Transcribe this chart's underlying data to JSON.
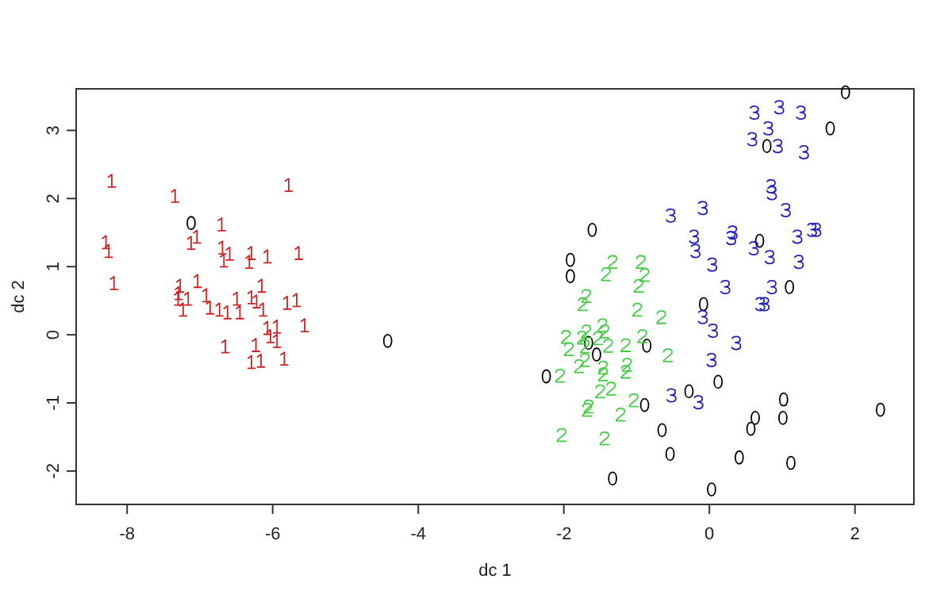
{
  "chart_data": {
    "type": "scatter",
    "xlabel": "dc 1",
    "ylabel": "dc 2",
    "xlim": [
      -8.7,
      2.81
    ],
    "ylim": [
      -2.49,
      3.61
    ],
    "xticks": [
      -8,
      -6,
      -4,
      -2,
      0,
      2
    ],
    "yticks": [
      -2,
      -1,
      0,
      1,
      2,
      3
    ],
    "grid": false,
    "legend": false,
    "series": [
      {
        "name": "1",
        "color": "#cc2222",
        "x": [
          -8.21,
          -7.34,
          -5.78,
          -6.7,
          -8.29,
          -8.25,
          -7.12,
          -7.04,
          -6.69,
          -6.59,
          -6.67,
          -6.29,
          -6.32,
          -6.07,
          -5.64,
          -8.18,
          -7.27,
          -7.29,
          -7.3,
          -7.16,
          -7.23,
          -7.03,
          -6.91,
          -6.86,
          -6.73,
          -6.62,
          -6.49,
          -6.45,
          -6.29,
          -6.22,
          -6.15,
          -6.13,
          -5.8,
          -5.67,
          -5.56,
          -6.07,
          -5.94,
          -6.03,
          -5.94,
          -6.65,
          -6.23,
          -6.29,
          -6.16,
          -5.84
        ],
        "values": [
          2.26,
          2.04,
          2.2,
          1.62,
          1.36,
          1.23,
          1.35,
          1.44,
          1.28,
          1.19,
          1.09,
          1.2,
          1.07,
          1.15,
          1.2,
          0.76,
          0.72,
          0.61,
          0.53,
          0.53,
          0.37,
          0.79,
          0.58,
          0.4,
          0.37,
          0.33,
          0.53,
          0.33,
          0.55,
          0.49,
          0.72,
          0.37,
          0.47,
          0.51,
          0.14,
          0.1,
          0.12,
          -0.02,
          -0.09,
          -0.17,
          -0.15,
          -0.4,
          -0.38,
          -0.35
        ]
      },
      {
        "name": "0",
        "color": "#000000",
        "x": [
          -7.12,
          -4.42,
          -1.61,
          -1.91,
          -1.91,
          -1.66,
          -1.55,
          -0.86,
          -2.24,
          -0.08,
          0.12,
          -0.28,
          -0.89,
          1.02,
          0.63,
          0.57,
          1.01,
          -0.65,
          -0.54,
          0.41,
          1.12,
          -1.33,
          0.03,
          2.35,
          1.87,
          1.66,
          0.79,
          0.69,
          1.1
        ],
        "values": [
          1.64,
          -0.09,
          1.54,
          1.1,
          0.86,
          -0.12,
          -0.29,
          -0.16,
          -0.61,
          0.45,
          -0.69,
          -0.83,
          -1.03,
          -0.95,
          -1.22,
          -1.38,
          -1.22,
          -1.4,
          -1.75,
          -1.8,
          -1.88,
          -2.11,
          -2.27,
          -1.1,
          3.56,
          3.03,
          2.77,
          1.38,
          0.7
        ]
      },
      {
        "name": "2",
        "color": "#44cc44",
        "x": [
          -1.33,
          -1.42,
          -0.94,
          -0.89,
          -0.97,
          -1.69,
          -1.74,
          -0.99,
          -0.66,
          -1.69,
          -1.47,
          -1.44,
          -1.97,
          -1.75,
          -1.53,
          -1.93,
          -1.71,
          -1.39,
          -1.15,
          -0.92,
          -0.57,
          -1.71,
          -1.79,
          -1.46,
          -1.46,
          -1.13,
          -1.15,
          -2.05,
          -1.35,
          -1.5,
          -1.66,
          -1.68,
          -1.04,
          -1.22,
          -2.03,
          -1.44
        ],
        "values": [
          1.07,
          0.89,
          1.07,
          0.88,
          0.72,
          0.57,
          0.45,
          0.37,
          0.26,
          0.05,
          0.14,
          0.05,
          -0.03,
          -0.04,
          -0.05,
          -0.21,
          -0.17,
          -0.16,
          -0.15,
          -0.02,
          -0.3,
          -0.37,
          -0.46,
          -0.48,
          -0.58,
          -0.44,
          -0.54,
          -0.6,
          -0.79,
          -0.83,
          -1.05,
          -1.1,
          -0.96,
          -1.17,
          -1.47,
          -1.52
        ]
      },
      {
        "name": "3",
        "color": "#2222bb",
        "x": [
          0.62,
          0.96,
          1.26,
          0.81,
          0.59,
          0.94,
          1.3,
          0.85,
          0.86,
          1.05,
          -0.09,
          -0.53,
          -0.21,
          -0.19,
          0.32,
          0.3,
          0.61,
          1.21,
          1.41,
          1.47,
          0.83,
          1.23,
          0.04,
          0.22,
          0.86,
          0.7,
          0.76,
          -0.09,
          0.05,
          0.37,
          0.03,
          -0.52,
          -0.15
        ],
        "values": [
          3.26,
          3.34,
          3.26,
          3.03,
          2.87,
          2.77,
          2.68,
          2.18,
          2.08,
          1.83,
          1.86,
          1.75,
          1.44,
          1.23,
          1.5,
          1.42,
          1.27,
          1.44,
          1.54,
          1.54,
          1.14,
          1.07,
          1.03,
          0.7,
          0.7,
          0.45,
          0.45,
          0.26,
          0.06,
          -0.12,
          -0.37,
          -0.89,
          -0.99
        ]
      }
    ]
  }
}
